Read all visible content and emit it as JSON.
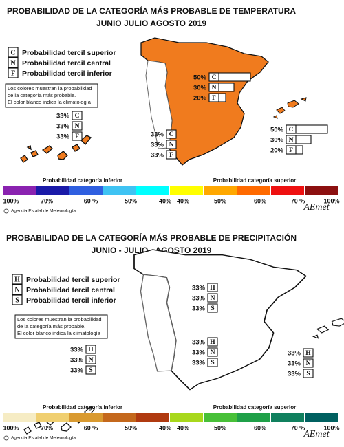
{
  "panels": [
    {
      "title": "PROBABILIDAD DE LA CATEGORÍA MÁS PROBABLE DE  TEMPERATURA",
      "subtitle": "JUNIO JULIO AGOSTO 2019",
      "map_color": "#f07b1e",
      "legend": [
        {
          "letter": "C",
          "label": "Probabilidad  tercil superior"
        },
        {
          "letter": "N",
          "label": "Probabilidad  tercil central"
        },
        {
          "letter": "F",
          "label": "Probabilidad  tercil inferior"
        }
      ],
      "note": [
        "Los colores muestran la probabilidad",
        "de la categoría más probable.",
        "El color blanco indica la climatología"
      ],
      "groups": [
        {
          "bars": true,
          "letters": [
            "C",
            "N",
            "F"
          ],
          "values": [
            50,
            30,
            20
          ],
          "labels": [
            "50%",
            "30%",
            "20%"
          ]
        },
        {
          "bars": true,
          "letters": [
            "C",
            "N",
            "F"
          ],
          "values": [
            50,
            30,
            20
          ],
          "labels": [
            "50%",
            "30%",
            "20%"
          ]
        },
        {
          "bars": false,
          "letters": [
            "C",
            "N",
            "F"
          ],
          "values": [
            33,
            33,
            33
          ],
          "labels": [
            "33%",
            "33%",
            "33%"
          ]
        },
        {
          "bars": false,
          "letters": [
            "C",
            "N",
            "F"
          ],
          "values": [
            33,
            33,
            33
          ],
          "labels": [
            "33%",
            "33%",
            "33%"
          ]
        }
      ],
      "scale": {
        "lower_title": "Probabilidad categoría inferior",
        "upper_title": "Probabilidad categoría superior",
        "colors": [
          "#8a22b0",
          "#1a1aa8",
          "#2f5fe0",
          "#3fc3f3",
          "#00ffff",
          "#ffff00",
          "#ffa800",
          "#ff6a00",
          "#ee1010",
          "#8c1010"
        ],
        "labels": [
          "100%",
          "70%",
          "60 %",
          "50%",
          "40%",
          "40%",
          "50%",
          "60%",
          "70 %",
          "100%"
        ]
      },
      "credit": "Agencia Estatal de Meteorología",
      "logo": "AEmet"
    },
    {
      "title": "PROBABILIDAD DE LA CATEGORÍA MÁS PROBABLE DE PRECIPITACIÓN",
      "subtitle": "JUNIO - JULIO - AGOSTO 2019",
      "map_color": "#ffffff",
      "legend": [
        {
          "letter": "H",
          "label": "Probabilidad  tercil superior"
        },
        {
          "letter": "N",
          "label": "Probabilidad  tercil central"
        },
        {
          "letter": "S",
          "label": "Probabilidad  tercil inferior"
        }
      ],
      "note": [
        "Los colores muestran la probabilidad",
        "de la categoría más probable.",
        "El color blanco indica la climatología"
      ],
      "groups": [
        {
          "bars": false,
          "letters": [
            "H",
            "N",
            "S"
          ],
          "values": [
            33,
            33,
            33
          ],
          "labels": [
            "33%",
            "33%",
            "33%"
          ]
        },
        {
          "bars": false,
          "letters": [
            "H",
            "N",
            "S"
          ],
          "values": [
            33,
            33,
            33
          ],
          "labels": [
            "33%",
            "33%",
            "33%"
          ]
        },
        {
          "bars": false,
          "letters": [
            "H",
            "N",
            "S"
          ],
          "values": [
            33,
            33,
            33
          ],
          "labels": [
            "33%",
            "33%",
            "33%"
          ]
        },
        {
          "bars": false,
          "letters": [
            "H",
            "N",
            "S"
          ],
          "values": [
            33,
            33,
            33
          ],
          "labels": [
            "33%",
            "33%",
            "33%"
          ]
        }
      ],
      "scale": {
        "lower_title": "Probabilidad categoría inferior",
        "upper_title": "Probabilidad categoría superior",
        "colors": [
          "#f6ecc4",
          "#f0cf70",
          "#d99a30",
          "#c4681c",
          "#b03a10",
          "#a8d81c",
          "#48c038",
          "#1fa048",
          "#10805e",
          "#006060"
        ],
        "labels": [
          "100%",
          "70%",
          "60 %",
          "50%",
          "40%",
          "40%",
          "50%",
          "60%",
          "70 %",
          "100%"
        ]
      },
      "credit": "Agencia Estatal de Meteorología",
      "logo": "AEmet"
    }
  ]
}
